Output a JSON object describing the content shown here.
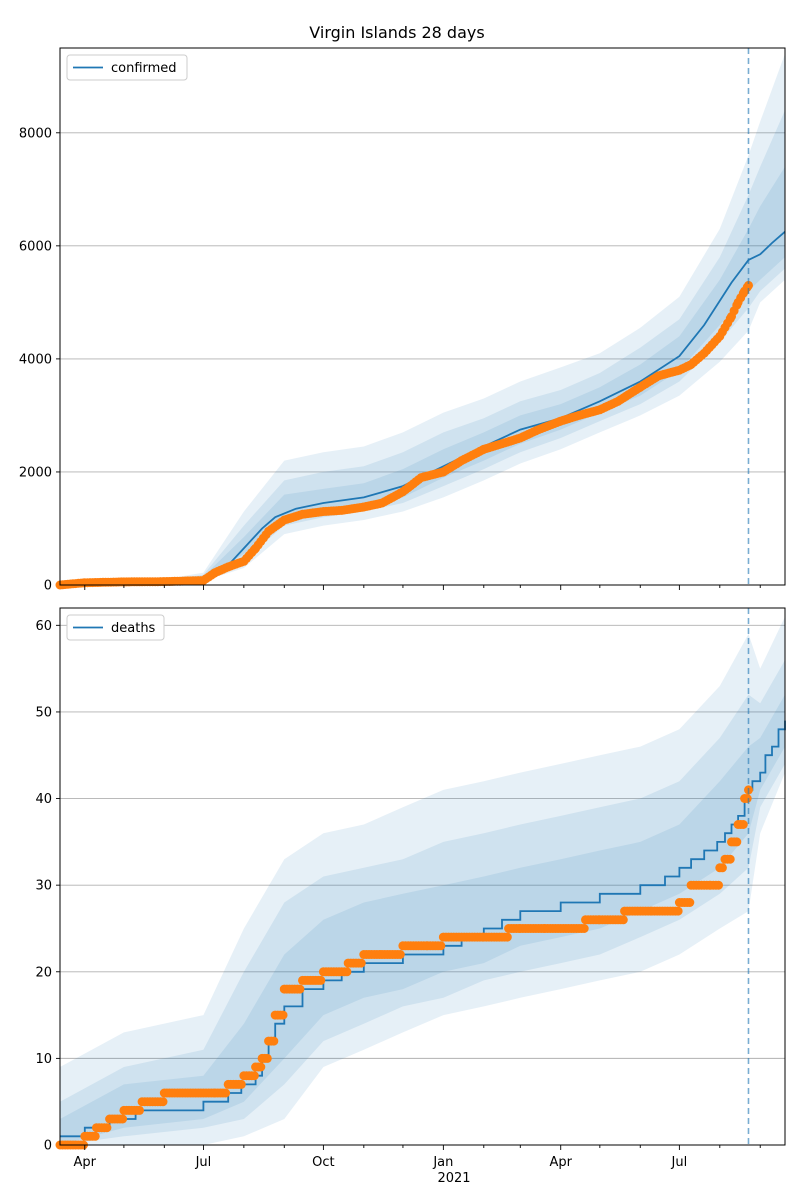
{
  "title": "Virgin Islands 28 days",
  "colors": {
    "model": "#1f77b4",
    "observed": "#ff7f0e",
    "band": "#1f77b4",
    "grid": "#b0b0b0",
    "vline": "#1f77b4"
  },
  "x_axis": {
    "ticks": [
      "Apr",
      "Jul",
      "Oct",
      "Jan",
      "Apr",
      "Jul"
    ],
    "year_label": "2021"
  },
  "chart_data": [
    {
      "type": "line",
      "panel": "confirmed",
      "title": "Virgin Islands 28 days",
      "legend": "confirmed",
      "legend_loc": "upper-left",
      "grid": "y",
      "ylim": [
        0,
        9500
      ],
      "yticks": [
        0,
        2000,
        4000,
        6000,
        8000
      ],
      "xlim": [
        "2020-03-13",
        "2021-09-20"
      ],
      "vline": "2021-08-23",
      "model_series": {
        "name": "confirmed",
        "x": [
          "2020-03-13",
          "2020-05-01",
          "2020-06-15",
          "2020-07-01",
          "2020-07-20",
          "2020-08-01",
          "2020-08-15",
          "2020-08-25",
          "2020-09-10",
          "2020-10-01",
          "2020-11-01",
          "2020-12-01",
          "2021-01-01",
          "2021-02-01",
          "2021-03-01",
          "2021-04-01",
          "2021-05-01",
          "2021-06-01",
          "2021-07-01",
          "2021-07-20",
          "2021-08-10",
          "2021-08-23",
          "2021-09-01",
          "2021-09-10",
          "2021-09-20"
        ],
        "y": [
          5,
          30,
          60,
          120,
          350,
          650,
          1000,
          1200,
          1350,
          1450,
          1550,
          1750,
          2100,
          2450,
          2750,
          2950,
          3250,
          3600,
          4050,
          4600,
          5350,
          5750,
          5850,
          6050,
          6250
        ]
      },
      "observed_series": {
        "name": "observed",
        "x": [
          "2020-03-13",
          "2020-04-01",
          "2020-05-01",
          "2020-06-01",
          "2020-07-01",
          "2020-07-10",
          "2020-07-20",
          "2020-08-01",
          "2020-08-10",
          "2020-08-20",
          "2020-09-01",
          "2020-09-15",
          "2020-10-01",
          "2020-10-15",
          "2020-11-01",
          "2020-11-15",
          "2020-12-01",
          "2020-12-15",
          "2021-01-01",
          "2021-01-15",
          "2021-02-01",
          "2021-02-15",
          "2021-03-01",
          "2021-03-15",
          "2021-04-01",
          "2021-04-15",
          "2021-05-01",
          "2021-05-15",
          "2021-06-01",
          "2021-06-15",
          "2021-07-01",
          "2021-07-10",
          "2021-07-20",
          "2021-08-01",
          "2021-08-10",
          "2021-08-15",
          "2021-08-20",
          "2021-08-23"
        ],
        "y": [
          0,
          40,
          55,
          60,
          80,
          220,
          320,
          420,
          650,
          950,
          1150,
          1250,
          1300,
          1320,
          1380,
          1450,
          1650,
          1900,
          2000,
          2200,
          2400,
          2500,
          2600,
          2750,
          2900,
          3000,
          3100,
          3250,
          3500,
          3700,
          3800,
          3900,
          4100,
          4400,
          4750,
          5000,
          5200,
          5300
        ]
      },
      "bands": [
        {
          "x": [
            "2020-03-13",
            "2020-06-01",
            "2020-07-01",
            "2020-08-01",
            "2020-09-01",
            "2020-10-01",
            "2020-11-01",
            "2020-12-01",
            "2021-01-01",
            "2021-02-01",
            "2021-03-01",
            "2021-04-01",
            "2021-05-01",
            "2021-06-01",
            "2021-07-01",
            "2021-08-01",
            "2021-08-23",
            "2021-09-01",
            "2021-09-20"
          ],
          "lower": [
            0,
            20,
            70,
            300,
            900,
            1050,
            1150,
            1300,
            1550,
            1850,
            2150,
            2400,
            2700,
            3000,
            3350,
            3950,
            4500,
            5000,
            5400
          ],
          "upper": [
            20,
            100,
            220,
            1300,
            2200,
            2350,
            2450,
            2700,
            3050,
            3300,
            3600,
            3850,
            4100,
            4550,
            5100,
            6300,
            7600,
            8200,
            9400
          ]
        },
        {
          "x": [
            "2020-03-13",
            "2020-06-01",
            "2020-07-01",
            "2020-08-01",
            "2020-09-01",
            "2020-10-01",
            "2020-11-01",
            "2020-12-01",
            "2021-01-01",
            "2021-02-01",
            "2021-03-01",
            "2021-04-01",
            "2021-05-01",
            "2021-06-01",
            "2021-07-01",
            "2021-08-01",
            "2021-08-23",
            "2021-09-01",
            "2021-09-20"
          ],
          "lower": [
            0,
            35,
            90,
            450,
            1050,
            1200,
            1300,
            1450,
            1750,
            2050,
            2350,
            2600,
            2900,
            3200,
            3600,
            4300,
            4900,
            5200,
            5600
          ],
          "upper": [
            12,
            85,
            180,
            1050,
            1850,
            2000,
            2100,
            2350,
            2700,
            2950,
            3250,
            3450,
            3750,
            4200,
            4700,
            5800,
            6900,
            7400,
            8400
          ]
        },
        {
          "x": [
            "2020-03-13",
            "2020-06-01",
            "2020-07-01",
            "2020-08-01",
            "2020-09-01",
            "2020-10-01",
            "2020-11-01",
            "2020-12-01",
            "2021-01-01",
            "2021-02-01",
            "2021-03-01",
            "2021-04-01",
            "2021-05-01",
            "2021-06-01",
            "2021-07-01",
            "2021-08-01",
            "2021-08-23",
            "2021-09-01",
            "2021-09-20"
          ],
          "lower": [
            2,
            45,
            105,
            550,
            1150,
            1300,
            1400,
            1550,
            1900,
            2200,
            2500,
            2750,
            3050,
            3350,
            3800,
            4600,
            5200,
            5400,
            5800
          ],
          "upper": [
            9,
            75,
            150,
            850,
            1600,
            1700,
            1800,
            2050,
            2400,
            2700,
            3000,
            3200,
            3500,
            3900,
            4400,
            5400,
            6300,
            6700,
            7400
          ]
        }
      ]
    },
    {
      "type": "line",
      "panel": "deaths",
      "legend": "deaths",
      "legend_loc": "upper-left",
      "grid": "y",
      "ylim": [
        0,
        62
      ],
      "yticks": [
        0,
        10,
        20,
        30,
        40,
        50,
        60
      ],
      "xlim": [
        "2020-03-13",
        "2021-09-20"
      ],
      "vline": "2021-08-23",
      "model_series": {
        "name": "deaths",
        "step": true,
        "x": [
          "2020-03-13",
          "2020-03-20",
          "2020-04-01",
          "2020-04-10",
          "2020-04-20",
          "2020-05-01",
          "2020-05-10",
          "2020-06-01",
          "2020-07-01",
          "2020-07-20",
          "2020-07-30",
          "2020-08-10",
          "2020-08-15",
          "2020-08-20",
          "2020-08-25",
          "2020-09-01",
          "2020-09-15",
          "2020-10-01",
          "2020-10-15",
          "2020-11-01",
          "2020-12-01",
          "2021-01-01",
          "2021-01-15",
          "2021-02-01",
          "2021-02-15",
          "2021-03-01",
          "2021-03-15",
          "2021-04-01",
          "2021-05-01",
          "2021-06-01",
          "2021-06-20",
          "2021-07-01",
          "2021-07-10",
          "2021-07-20",
          "2021-07-30",
          "2021-08-05",
          "2021-08-10",
          "2021-08-15",
          "2021-08-20",
          "2021-08-23",
          "2021-08-26",
          "2021-09-01",
          "2021-09-05",
          "2021-09-10",
          "2021-09-15",
          "2021-09-20"
        ],
        "y": [
          1,
          1,
          2,
          2,
          3,
          3,
          4,
          4,
          5,
          6,
          7,
          8,
          10,
          12,
          14,
          16,
          18,
          19,
          20,
          21,
          22,
          23,
          24,
          25,
          26,
          27,
          27,
          28,
          29,
          30,
          31,
          32,
          33,
          34,
          35,
          36,
          37,
          38,
          40,
          41,
          42,
          43,
          45,
          46,
          48,
          49
        ]
      },
      "observed_series": {
        "name": "observed",
        "x": [
          "2020-03-13",
          "2020-04-01",
          "2020-04-10",
          "2020-04-20",
          "2020-05-01",
          "2020-05-15",
          "2020-06-01",
          "2020-07-01",
          "2020-07-10",
          "2020-07-20",
          "2020-08-01",
          "2020-08-10",
          "2020-08-15",
          "2020-08-20",
          "2020-08-25",
          "2020-09-01",
          "2020-09-15",
          "2020-10-01",
          "2020-10-15",
          "2020-10-20",
          "2020-11-01",
          "2020-12-01",
          "2020-12-20",
          "2021-01-01",
          "2021-02-01",
          "2021-02-20",
          "2021-03-01",
          "2021-03-20",
          "2021-04-01",
          "2021-04-20",
          "2021-05-01",
          "2021-05-20",
          "2021-06-01",
          "2021-06-10",
          "2021-06-20",
          "2021-07-01",
          "2021-07-10",
          "2021-07-20",
          "2021-07-25",
          "2021-08-01",
          "2021-08-05",
          "2021-08-10",
          "2021-08-15",
          "2021-08-20",
          "2021-08-23"
        ],
        "y": [
          0,
          1,
          2,
          3,
          4,
          5,
          6,
          6,
          6,
          7,
          8,
          9,
          10,
          12,
          15,
          18,
          19,
          20,
          20,
          21,
          22,
          23,
          23,
          24,
          24,
          25,
          25,
          25,
          25,
          26,
          26,
          27,
          27,
          27,
          27,
          28,
          30,
          30,
          30,
          32,
          33,
          35,
          37,
          40,
          41
        ]
      },
      "bands": [
        {
          "x": [
            "2020-03-13",
            "2020-05-01",
            "2020-07-01",
            "2020-08-01",
            "2020-09-01",
            "2020-10-01",
            "2020-11-01",
            "2020-12-01",
            "2021-01-01",
            "2021-02-01",
            "2021-03-01",
            "2021-04-01",
            "2021-05-01",
            "2021-06-01",
            "2021-07-01",
            "2021-08-01",
            "2021-08-23",
            "2021-09-01",
            "2021-09-20"
          ],
          "lower": [
            0,
            0,
            0,
            1,
            3,
            9,
            11,
            13,
            15,
            16,
            17,
            18,
            19,
            20,
            22,
            25,
            27,
            36,
            43
          ],
          "upper": [
            9,
            13,
            15,
            25,
            33,
            36,
            37,
            39,
            41,
            42,
            43,
            44,
            45,
            46,
            48,
            53,
            59,
            55,
            61
          ]
        },
        {
          "x": [
            "2020-03-13",
            "2020-05-01",
            "2020-07-01",
            "2020-08-01",
            "2020-09-01",
            "2020-10-01",
            "2020-11-01",
            "2020-12-01",
            "2021-01-01",
            "2021-02-01",
            "2021-03-01",
            "2021-04-01",
            "2021-05-01",
            "2021-06-01",
            "2021-07-01",
            "2021-08-01",
            "2021-08-23",
            "2021-09-01",
            "2021-09-20"
          ],
          "lower": [
            0,
            1,
            2,
            3,
            7,
            12,
            14,
            16,
            17,
            19,
            20,
            21,
            22,
            24,
            26,
            29,
            32,
            39,
            44
          ],
          "upper": [
            5,
            9,
            11,
            20,
            28,
            31,
            32,
            33,
            35,
            36,
            37,
            38,
            39,
            40,
            42,
            47,
            52,
            51,
            56
          ]
        },
        {
          "x": [
            "2020-03-13",
            "2020-05-01",
            "2020-07-01",
            "2020-08-01",
            "2020-09-01",
            "2020-10-01",
            "2020-11-01",
            "2020-12-01",
            "2021-01-01",
            "2021-02-01",
            "2021-03-01",
            "2021-04-01",
            "2021-05-01",
            "2021-06-01",
            "2021-07-01",
            "2021-08-01",
            "2021-08-23",
            "2021-09-01",
            "2021-09-20"
          ],
          "lower": [
            0,
            2,
            3,
            5,
            10,
            15,
            17,
            18,
            20,
            21,
            23,
            24,
            25,
            27,
            29,
            32,
            36,
            41,
            46
          ],
          "upper": [
            3,
            7,
            8,
            14,
            22,
            26,
            28,
            29,
            30,
            31,
            32,
            33,
            34,
            35,
            37,
            42,
            46,
            47,
            52
          ]
        }
      ]
    }
  ]
}
